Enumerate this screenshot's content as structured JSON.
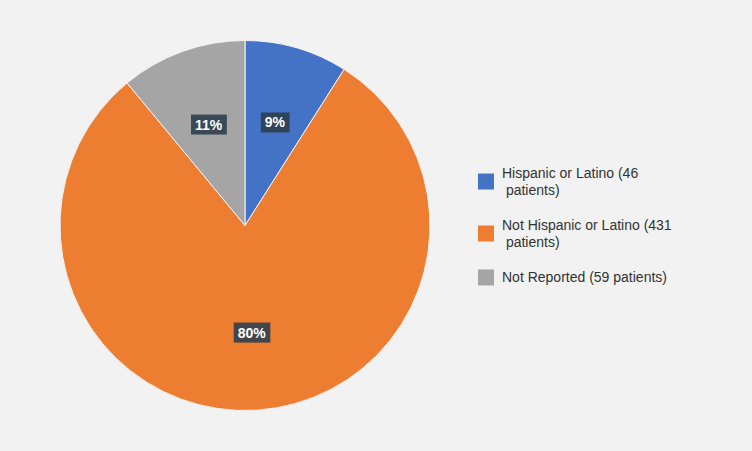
{
  "chart_data": {
    "type": "pie",
    "categories": [
      "Hispanic or Latino (46\n patients)",
      "Not Hispanic or Latino (431\n patients)",
      "Not Reported (59 patients)"
    ],
    "values": [
      9,
      80,
      11
    ],
    "value_labels": [
      "9%",
      "80%",
      "11%"
    ],
    "colors": [
      "#4472c4",
      "#ed7d31",
      "#a5a5a5"
    ],
    "data_labels": true,
    "legend": "right"
  }
}
